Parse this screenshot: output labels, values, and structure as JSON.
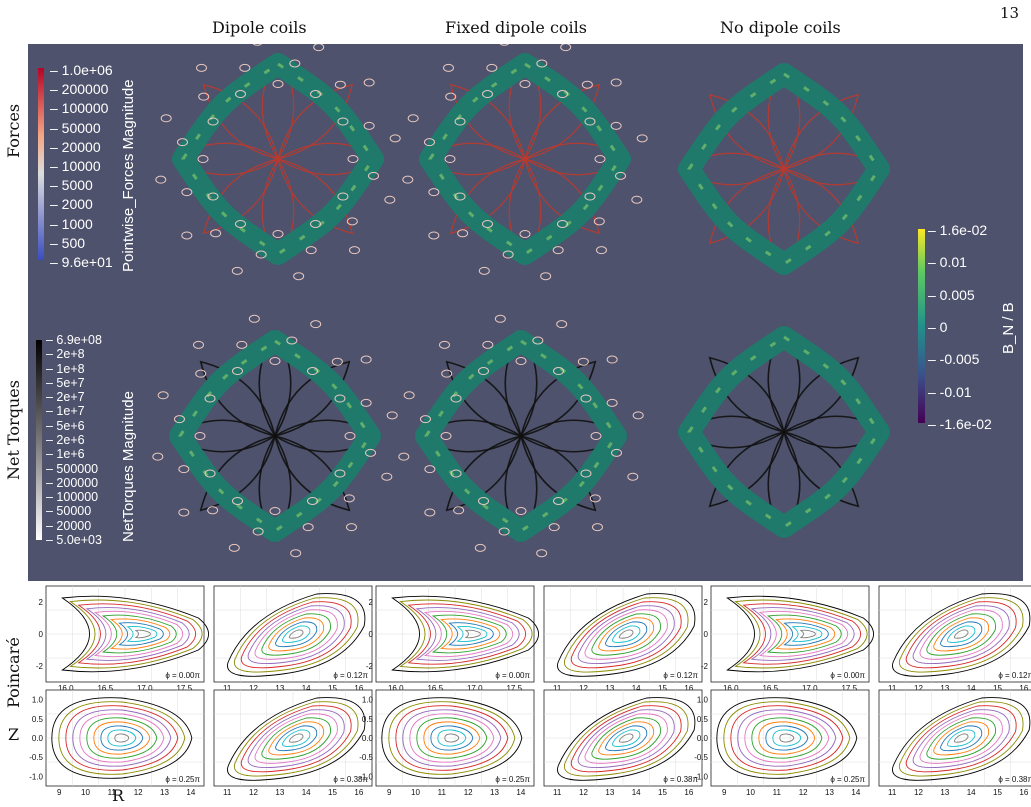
{
  "page_number": "13",
  "column_titles": [
    "Dipole coils",
    "Fixed dipole coils",
    "No dipole coils"
  ],
  "row_labels": {
    "forces": "Forces",
    "net_torques": "Net Torques",
    "poincare": "Poincaré",
    "z": "Z",
    "r": "R"
  },
  "forces_colorbar": {
    "title": "Pointwise_Forces Magnitude",
    "ticks": [
      "1.0e+06",
      "200000",
      "100000",
      "50000",
      "20000",
      "10000",
      "5000",
      "2000",
      "1000",
      "500",
      "9.6e+01"
    ],
    "colors": {
      "top": "#b40426",
      "mid": "#dddddd",
      "bottom": "#3b4cc0"
    }
  },
  "torques_colorbar": {
    "title": "NetTorques Magnitude",
    "ticks": [
      "6.9e+08",
      "2e+8",
      "1e+8",
      "5e+7",
      "2e+7",
      "1e+7",
      "5e+6",
      "2e+6",
      "1e+6",
      "500000",
      "200000",
      "100000",
      "50000",
      "20000",
      "5.0e+03"
    ],
    "colors": {
      "top": "#000000",
      "bottom": "#ffffff"
    }
  },
  "bn_colorbar": {
    "title": "B_N / B",
    "ticks": [
      "1.6e-02",
      "0.01",
      "0.005",
      "0",
      "-0.005",
      "-0.01",
      "-1.6e-02"
    ],
    "colors": {
      "top": "#fde725",
      "mid": "#21918c",
      "bottom": "#440154"
    }
  },
  "poincare_panels": [
    {
      "phi": "ϕ = 0.00π",
      "xticks": [
        "16.0",
        "16.5",
        "17.0",
        "17.5"
      ],
      "yticks": [
        "2",
        "0",
        "-2"
      ],
      "shape": "bean"
    },
    {
      "phi": "ϕ = 0.12π",
      "xticks": [
        "11",
        "12",
        "13",
        "14",
        "15",
        "16"
      ],
      "yticks": [
        "2",
        "0",
        "-2"
      ],
      "shape": "tilt"
    },
    {
      "phi": "ϕ = 0.00π",
      "xticks": [
        "16.0",
        "16.5",
        "17.0",
        "17.5"
      ],
      "yticks": [
        "2",
        "0",
        "-2"
      ],
      "shape": "bean"
    },
    {
      "phi": "ϕ = 0.12π",
      "xticks": [
        "11",
        "12",
        "13",
        "14",
        "15",
        "16"
      ],
      "yticks": [
        "2",
        "0",
        "-2"
      ],
      "shape": "tilt"
    },
    {
      "phi": "ϕ = 0.00π",
      "xticks": [
        "16.0",
        "16.5",
        "17.0",
        "17.5"
      ],
      "yticks": [
        "2",
        "0",
        "-2"
      ],
      "shape": "bean"
    },
    {
      "phi": "ϕ = 0.12π",
      "xticks": [
        "11",
        "12",
        "13",
        "14",
        "15",
        "16"
      ],
      "yticks": [
        "2",
        "0",
        "-2"
      ],
      "shape": "tilt"
    },
    {
      "phi": "ϕ = 0.25π",
      "xticks": [
        "9",
        "10",
        "11",
        "12",
        "13",
        "14"
      ],
      "yticks": [
        "1.0",
        "0.5",
        "0.0",
        "-0.5",
        "-1.0"
      ],
      "shape": "egg"
    },
    {
      "phi": "ϕ = 0.38π",
      "xticks": [
        "11",
        "12",
        "13",
        "14",
        "15",
        "16"
      ],
      "yticks": [
        "1.0",
        "0.5",
        "0.0",
        "-0.5",
        "-1.0"
      ],
      "shape": "tilt2"
    },
    {
      "phi": "ϕ = 0.25π",
      "xticks": [
        "9",
        "10",
        "11",
        "12",
        "13",
        "14"
      ],
      "yticks": [
        "1.0",
        "0.5",
        "0.0",
        "-0.5",
        "-1.0"
      ],
      "shape": "egg"
    },
    {
      "phi": "ϕ = 0.38π",
      "xticks": [
        "11",
        "12",
        "13",
        "14",
        "15",
        "16"
      ],
      "yticks": [
        "1.0",
        "0.5",
        "0.0",
        "-0.5",
        "-1.0"
      ],
      "shape": "tilt2"
    },
    {
      "phi": "ϕ = 0.25π",
      "xticks": [
        "9",
        "10",
        "11",
        "12",
        "13",
        "14"
      ],
      "yticks": [
        "1.0",
        "0.5",
        "0.0",
        "-0.5",
        "-1.0"
      ],
      "shape": "egg"
    },
    {
      "phi": "ϕ = 0.38π",
      "xticks": [
        "11",
        "12",
        "13",
        "14",
        "15",
        "16"
      ],
      "yticks": [
        "1.0",
        "0.5",
        "0.0",
        "-0.5",
        "-1.0"
      ],
      "shape": "tilt2"
    }
  ],
  "surface_colors": {
    "torus": "#1f7a6c",
    "force_coil": "#c0392b",
    "torque_coil": "#111111",
    "dipole": "#e8c8c0"
  },
  "poincare_line_colors": [
    "#000000",
    "#8b8b00",
    "#d62728",
    "#9467bd",
    "#e377c2",
    "#2ca02c",
    "#ff7f0e",
    "#1f77b4",
    "#17becf",
    "#7f7f7f"
  ]
}
